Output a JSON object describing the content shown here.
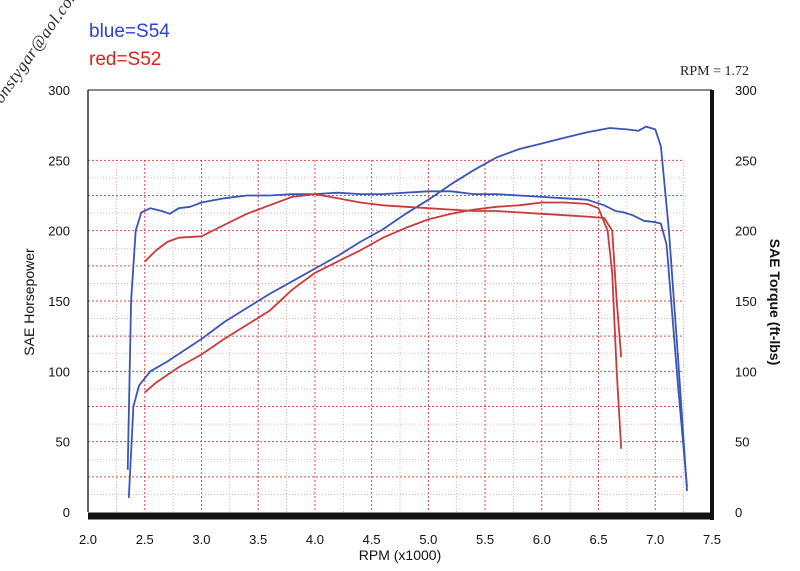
{
  "legend": {
    "blue_label": "blue=S54",
    "red_label": "red=S52",
    "blue_color": "#2b3fd4",
    "red_color": "#e0201c"
  },
  "watermark": "©ronstygar@aol.com",
  "rpm_note": "RPM = 1.72",
  "chart_data": {
    "type": "line",
    "xlabel": "RPM (x1000)",
    "ylabel_left": "SAE Horsepower",
    "ylabel_right": "SAE Torque (ft-lbs)",
    "xlim": [
      2.0,
      7.5
    ],
    "ylim_left": [
      0,
      300
    ],
    "ylim_right": [
      0,
      300
    ],
    "x_ticks": [
      "2.0",
      "2.5",
      "3.0",
      "3.5",
      "4.0",
      "4.5",
      "5.0",
      "5.5",
      "6.0",
      "6.5",
      "7.0",
      "7.5"
    ],
    "y_ticks_left": [
      "0",
      "50",
      "100",
      "150",
      "200",
      "250",
      "300"
    ],
    "y_ticks_right": [
      "0",
      "50",
      "100",
      "150",
      "200",
      "250",
      "300"
    ],
    "grid": true,
    "series": [
      {
        "name": "S54",
        "kind": "torque",
        "color": "#3a55b8",
        "x": [
          2.35,
          2.38,
          2.42,
          2.47,
          2.55,
          2.65,
          2.72,
          2.8,
          2.9,
          3.0,
          3.2,
          3.4,
          3.6,
          3.8,
          4.0,
          4.2,
          4.4,
          4.6,
          4.8,
          5.0,
          5.2,
          5.4,
          5.6,
          5.8,
          6.0,
          6.2,
          6.4,
          6.55,
          6.65,
          6.72,
          6.8,
          6.9,
          7.0,
          7.05,
          7.1,
          7.2,
          7.28
        ],
        "y": [
          30,
          150,
          200,
          213,
          216,
          214,
          212,
          216,
          217,
          220,
          223,
          225,
          225,
          226,
          226,
          227,
          226,
          226,
          227,
          228,
          228,
          226,
          226,
          225,
          224,
          223,
          222,
          218,
          214,
          213,
          211,
          207,
          206,
          205,
          190,
          90,
          18
        ]
      },
      {
        "name": "S54",
        "kind": "horsepower",
        "color": "#3a55b8",
        "x": [
          2.36,
          2.4,
          2.45,
          2.55,
          2.7,
          2.85,
          3.0,
          3.2,
          3.4,
          3.6,
          3.8,
          4.0,
          4.2,
          4.4,
          4.6,
          4.8,
          5.0,
          5.2,
          5.4,
          5.6,
          5.8,
          6.0,
          6.2,
          6.4,
          6.6,
          6.75,
          6.85,
          6.92,
          7.0,
          7.05,
          7.12,
          7.2,
          7.28
        ],
        "y": [
          10,
          75,
          90,
          100,
          107,
          115,
          123,
          135,
          145,
          155,
          164,
          173,
          182,
          192,
          201,
          212,
          222,
          233,
          243,
          252,
          258,
          262,
          266,
          270,
          273,
          272,
          271,
          274,
          272,
          260,
          200,
          110,
          15
        ]
      },
      {
        "name": "S52",
        "kind": "torque",
        "color": "#c93a3a",
        "x": [
          2.5,
          2.6,
          2.7,
          2.8,
          3.0,
          3.2,
          3.4,
          3.6,
          3.8,
          4.0,
          4.2,
          4.4,
          4.6,
          4.8,
          5.0,
          5.2,
          5.4,
          5.6,
          5.8,
          6.0,
          6.2,
          6.4,
          6.55,
          6.62,
          6.66,
          6.7
        ],
        "y": [
          178,
          186,
          192,
          195,
          196,
          204,
          212,
          218,
          224,
          226,
          223,
          220,
          218,
          217,
          216,
          215,
          214,
          214,
          213,
          212,
          211,
          210,
          209,
          200,
          150,
          110
        ]
      },
      {
        "name": "S52",
        "kind": "horsepower",
        "color": "#c93a3a",
        "x": [
          2.5,
          2.6,
          2.8,
          3.0,
          3.2,
          3.4,
          3.6,
          3.8,
          4.0,
          4.2,
          4.4,
          4.6,
          4.8,
          5.0,
          5.2,
          5.4,
          5.6,
          5.8,
          6.0,
          6.2,
          6.4,
          6.5,
          6.58,
          6.62,
          6.66,
          6.7
        ],
        "y": [
          85,
          92,
          103,
          112,
          123,
          133,
          143,
          158,
          170,
          178,
          186,
          195,
          202,
          208,
          212,
          215,
          217,
          218,
          220,
          220,
          219,
          216,
          200,
          170,
          100,
          45
        ]
      }
    ]
  }
}
